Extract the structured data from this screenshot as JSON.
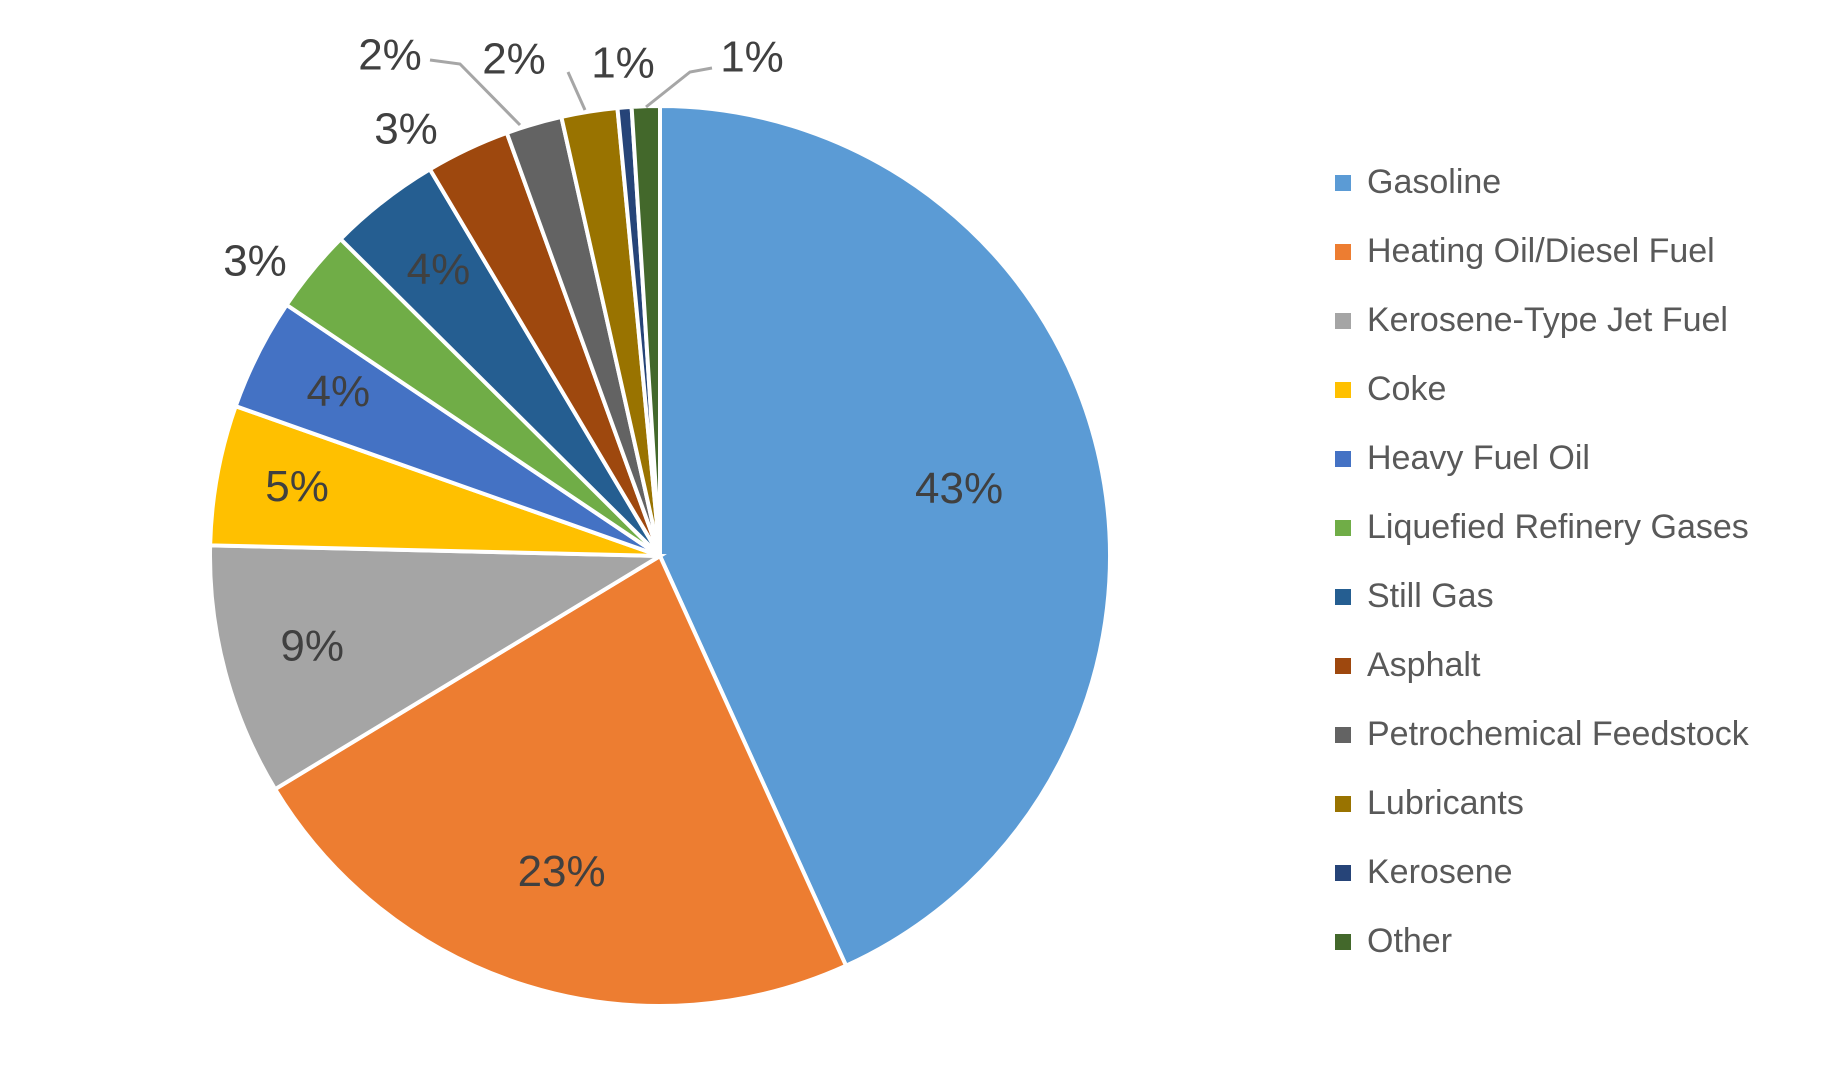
{
  "chart_data": {
    "type": "pie",
    "title": "",
    "categories": [
      "Gasoline",
      "Heating Oil/Diesel Fuel",
      "Kerosene-Type Jet Fuel",
      "Coke",
      "Heavy Fuel Oil",
      "Liquefied Refinery Gases",
      "Still Gas",
      "Asphalt",
      "Petrochemical Feedstock",
      "Lubricants",
      "Kerosene",
      "Other"
    ],
    "values": [
      43,
      23,
      9,
      5,
      4,
      3,
      4,
      3,
      2,
      2,
      0.5,
      1
    ],
    "labels": [
      "43%",
      "23%",
      "9%",
      "5%",
      "4%",
      "3%",
      "4%",
      "3%",
      "2%",
      "2%",
      "1%",
      "1%"
    ],
    "colors": [
      "#5b9bd5",
      "#ed7d31",
      "#a5a5a5",
      "#ffc000",
      "#4472c4",
      "#70ad47",
      "#255e91",
      "#9e480e",
      "#636363",
      "#997300",
      "#264478",
      "#43682b"
    ],
    "legend_position": "right"
  }
}
